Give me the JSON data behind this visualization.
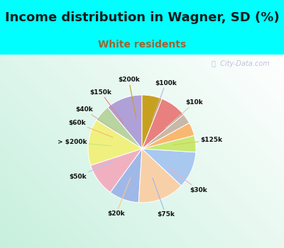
{
  "title": "Income distribution in Wagner, SD (%)",
  "subtitle": "White residents",
  "title_fontsize": 13,
  "subtitle_fontsize": 10,
  "title_color": "#1a1a1a",
  "subtitle_color": "#996633",
  "bg_cyan": "#00ffff",
  "labels": [
    "$100k",
    "$10k",
    "$125k",
    "$30k",
    "$75k",
    "$20k",
    "$50k",
    "> $200k",
    "$60k",
    "$40k",
    "$150k",
    "$200k"
  ],
  "values": [
    11,
    5,
    14,
    10,
    9,
    14,
    11,
    5,
    4,
    3,
    8,
    6
  ],
  "colors": [
    "#b0a0d8",
    "#b8d4a0",
    "#f0f080",
    "#f0b0c0",
    "#a0b8e8",
    "#f8d0a8",
    "#a8c8f0",
    "#c8e870",
    "#f8b870",
    "#c8b8a8",
    "#e88080",
    "#c8a020"
  ],
  "line_colors": [
    "#c0b0e0",
    "#c0d8b0",
    "#d0d060",
    "#f0b0c0",
    "#a0b8e8",
    "#f8c890",
    "#a8c8f0",
    "#c8e870",
    "#f8b870",
    "#c8b8a8",
    "#e88080",
    "#c8a020"
  ]
}
